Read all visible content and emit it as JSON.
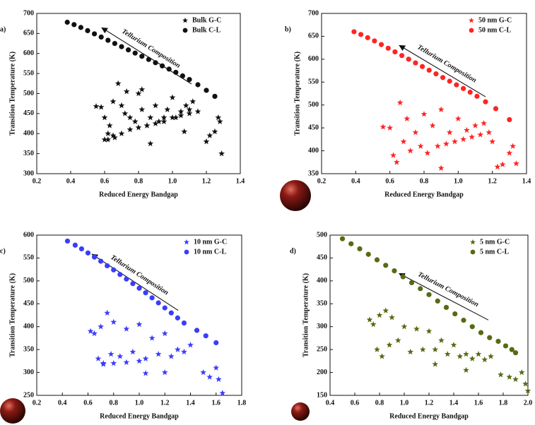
{
  "chart_data": [
    {
      "type": "scatter",
      "label": "a)",
      "xlabel": "Reduced Energy Bandgap",
      "ylabel": "Transition Temperature (K)",
      "annotation": "Tellurium Composition",
      "xlim": [
        0.2,
        1.4
      ],
      "xticks": [
        0.2,
        0.4,
        0.6,
        0.8,
        {
          "value": 1,
          "label": "1.0"
        },
        1.2,
        1.4
      ],
      "ylim": [
        300,
        700
      ],
      "yticks": [
        300,
        350,
        400,
        450,
        500,
        550,
        600,
        650,
        700
      ],
      "series": [
        {
          "name": "Bulk G-C",
          "marker": "star",
          "color": "#111111",
          "x": [
            0.55,
            0.58,
            0.6,
            0.62,
            0.6,
            0.63,
            0.65,
            0.68,
            0.7,
            0.72,
            0.75,
            0.78,
            0.8,
            0.82,
            0.85,
            0.87,
            0.9,
            0.92,
            0.95,
            0.97,
            1.0,
            1.02,
            1.05,
            1.08,
            1.1,
            1.12,
            1.15,
            0.62,
            0.66,
            0.7,
            0.75,
            0.8,
            0.85,
            0.9,
            0.95,
            1.0,
            1.05,
            1.1,
            0.65,
            0.73,
            0.82,
            0.87,
            1.07,
            1.2,
            1.22,
            1.25,
            1.27,
            1.28,
            1.29
          ],
          "values": [
            468,
            466,
            440,
            400,
            385,
            420,
            395,
            525,
            470,
            450,
            440,
            430,
            500,
            460,
            420,
            440,
            470,
            430,
            440,
            460,
            490,
            440,
            455,
            470,
            460,
            480,
            455,
            385,
            390,
            400,
            410,
            415,
            420,
            425,
            430,
            440,
            445,
            450,
            480,
            505,
            510,
            375,
            405,
            380,
            395,
            405,
            440,
            430,
            350
          ]
        },
        {
          "name": "Bulk C-L",
          "marker": "circle",
          "color": "#111111",
          "x": [
            0.38,
            0.42,
            0.46,
            0.5,
            0.54,
            0.58,
            0.62,
            0.66,
            0.7,
            0.74,
            0.78,
            0.82,
            0.86,
            0.9,
            0.94,
            0.98,
            1.02,
            1.06,
            1.1,
            1.15,
            1.2,
            1.25
          ],
          "values": [
            678,
            672,
            665,
            657,
            649,
            641,
            633,
            625,
            617,
            609,
            601,
            593,
            585,
            577,
            569,
            561,
            553,
            544,
            535,
            522,
            508,
            493
          ]
        }
      ]
    },
    {
      "type": "scatter",
      "label": "b)",
      "xlabel": "Reduced Energy Bandgap",
      "ylabel": "Transition Temperature (K)",
      "annotation": "Tellurium Composition",
      "xlim": [
        0.2,
        1.4
      ],
      "xticks": [
        0.2,
        0.4,
        0.6,
        0.8,
        {
          "value": 1,
          "label": "1.0"
        },
        1.2,
        1.4
      ],
      "ylim": [
        350,
        700
      ],
      "yticks": [
        350,
        400,
        450,
        500,
        550,
        600,
        650,
        700
      ],
      "series": [
        {
          "name": "50 nm G-C",
          "marker": "star",
          "color": "#ff2424",
          "x": [
            0.56,
            0.6,
            0.62,
            0.64,
            0.66,
            0.68,
            0.7,
            0.72,
            0.75,
            0.78,
            0.8,
            0.82,
            0.85,
            0.88,
            0.9,
            0.93,
            0.95,
            0.98,
            1.0,
            1.03,
            1.05,
            1.08,
            1.1,
            1.13,
            1.15,
            1.18,
            0.9,
            1.2,
            1.23,
            1.26,
            1.3,
            1.32,
            1.34
          ],
          "values": [
            452,
            450,
            390,
            375,
            505,
            420,
            470,
            400,
            440,
            410,
            480,
            395,
            455,
            410,
            490,
            415,
            440,
            420,
            470,
            425,
            445,
            430,
            455,
            435,
            460,
            440,
            362,
            420,
            365,
            370,
            395,
            410,
            372
          ]
        },
        {
          "name": "50 nm C-L",
          "marker": "circle",
          "color": "#ff2424",
          "x": [
            0.39,
            0.43,
            0.47,
            0.51,
            0.55,
            0.59,
            0.63,
            0.67,
            0.71,
            0.75,
            0.79,
            0.83,
            0.87,
            0.91,
            0.95,
            0.99,
            1.03,
            1.07,
            1.11,
            1.16,
            1.22,
            1.3
          ],
          "values": [
            660,
            654,
            647,
            640,
            632,
            624,
            616,
            608,
            600,
            592,
            584,
            576,
            568,
            560,
            552,
            544,
            536,
            528,
            519,
            507,
            492,
            468
          ]
        }
      ]
    },
    {
      "type": "scatter",
      "label": "c)",
      "xlabel": "Reduced Energy Bandgap",
      "ylabel": "Transition Temperature (K)",
      "annotation": "Tellurium Composition",
      "xlim": [
        0.2,
        1.8
      ],
      "xticks": [
        0.2,
        0.4,
        0.6,
        0.8,
        {
          "value": 1,
          "label": "1.0"
        },
        1.2,
        1.4,
        1.6,
        1.8
      ],
      "ylim": [
        250,
        600
      ],
      "yticks": [
        250,
        300,
        350,
        400,
        450,
        500,
        550,
        600
      ],
      "series": [
        {
          "name": "10 nm G-C",
          "marker": "star",
          "color": "#3a3cff",
          "x": [
            0.62,
            0.65,
            0.68,
            0.7,
            0.72,
            0.75,
            0.78,
            0.8,
            0.85,
            0.9,
            0.95,
            1.0,
            1.05,
            1.1,
            1.15,
            1.2,
            1.25,
            1.3,
            1.35,
            1.4,
            0.72,
            0.8,
            0.9,
            1.0,
            1.05,
            1.2,
            1.5,
            1.55,
            1.6,
            1.62,
            1.65
          ],
          "values": [
            390,
            385,
            330,
            400,
            320,
            430,
            340,
            410,
            335,
            395,
            345,
            405,
            330,
            375,
            340,
            385,
            335,
            350,
            345,
            360,
            318,
            320,
            322,
            325,
            298,
            300,
            300,
            290,
            310,
            285,
            255
          ]
        },
        {
          "name": "10 nm C-L",
          "marker": "circle",
          "color": "#3a3cff",
          "x": [
            0.44,
            0.5,
            0.55,
            0.6,
            0.65,
            0.7,
            0.75,
            0.8,
            0.85,
            0.9,
            0.95,
            1.0,
            1.05,
            1.1,
            1.15,
            1.2,
            1.25,
            1.3,
            1.35,
            1.45,
            1.52,
            1.6
          ],
          "values": [
            587,
            578,
            570,
            561,
            552,
            543,
            533,
            524,
            514,
            504,
            494,
            484,
            474,
            463,
            452,
            441,
            430,
            419,
            408,
            392,
            380,
            365
          ]
        }
      ]
    },
    {
      "type": "scatter",
      "label": "d)",
      "xlabel": "Reduced Energy Bandgap",
      "ylabel": "Transition Temperature (K)",
      "annotation": "Tellurium Composition",
      "xlim": [
        0.4,
        2.0
      ],
      "xticks": [
        0.4,
        0.6,
        0.8,
        {
          "value": 1,
          "label": "1.0"
        },
        1.2,
        1.4,
        1.6,
        1.8,
        {
          "value": 2,
          "label": "2.0"
        }
      ],
      "ylim": [
        150,
        500
      ],
      "yticks": [
        150,
        200,
        250,
        300,
        350,
        400,
        450,
        500
      ],
      "series": [
        {
          "name": "5 nm G-C",
          "marker": "star",
          "color": "#556b12",
          "x": [
            0.72,
            0.75,
            0.78,
            0.8,
            0.82,
            0.85,
            0.88,
            0.9,
            0.95,
            1.0,
            1.05,
            1.1,
            1.15,
            1.2,
            1.25,
            1.3,
            1.35,
            1.4,
            1.45,
            1.5,
            1.55,
            1.6,
            1.65,
            1.7,
            1.25,
            1.5,
            1.78,
            1.85,
            1.9,
            1.95,
            1.98,
            2.0
          ],
          "values": [
            315,
            305,
            250,
            325,
            235,
            335,
            260,
            320,
            270,
            300,
            245,
            295,
            250,
            290,
            250,
            270,
            240,
            260,
            235,
            240,
            230,
            240,
            228,
            235,
            218,
            205,
            195,
            190,
            185,
            200,
            175,
            160
          ]
        },
        {
          "name": "5 nm C-L",
          "marker": "circle",
          "color": "#556b12",
          "x": [
            0.5,
            0.57,
            0.64,
            0.71,
            0.78,
            0.85,
            0.92,
            0.99,
            1.06,
            1.13,
            1.2,
            1.27,
            1.34,
            1.41,
            1.48,
            1.55,
            1.62,
            1.69,
            1.76,
            1.82,
            1.87,
            1.9
          ],
          "values": [
            492,
            481,
            470,
            458,
            446,
            434,
            422,
            409,
            396,
            383,
            370,
            356,
            342,
            328,
            314,
            300,
            287,
            276,
            268,
            258,
            250,
            243
          ]
        }
      ]
    }
  ]
}
